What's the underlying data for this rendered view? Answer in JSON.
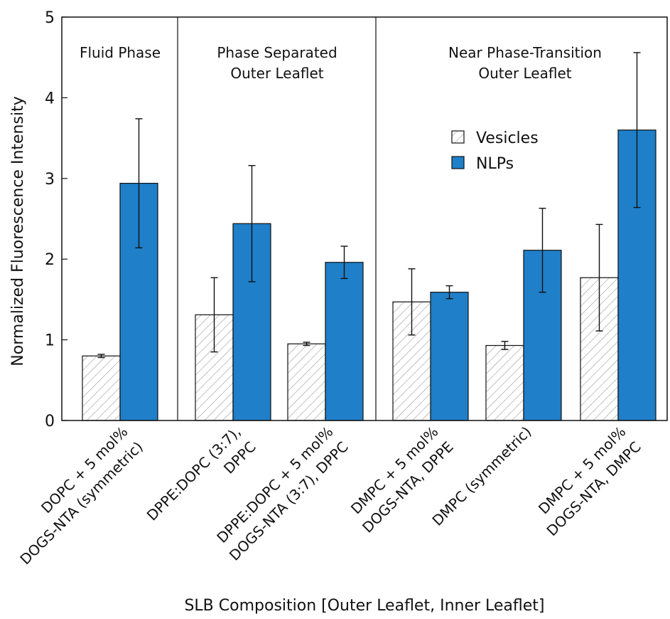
{
  "chart_data": {
    "type": "bar",
    "xlabel": "SLB Composition [Outer Leaflet, Inner Leaflet]",
    "ylabel": "Normalized Fluorescence Intensity",
    "ylim": [
      0,
      5
    ],
    "yticks": [
      "0",
      "1",
      "2",
      "3",
      "4",
      "5"
    ],
    "grid": false,
    "legend_position": "upper-right",
    "categories": [
      [
        "DOPC + 5 mol%",
        "DOGS-NTA (symmetric)"
      ],
      [
        "DPPE:DOPC (3:7),",
        "DPPC"
      ],
      [
        "DPPE:DOPC + 5 mol%",
        "DOGS-NTA (3:7), DPPC"
      ],
      [
        "DMPC + 5 mol%",
        "DOGS-NTA, DPPE"
      ],
      [
        "DMPC (symmetric)"
      ],
      [
        "DMPC + 5 mol%",
        "DOGS-NTA, DMPC"
      ]
    ],
    "series": [
      {
        "name": "Vesicles",
        "pattern": "hatched",
        "color": "#ffffff",
        "values": [
          0.8,
          1.31,
          0.95,
          1.47,
          0.93,
          1.77
        ],
        "error": [
          0.02,
          0.46,
          0.02,
          0.41,
          0.05,
          0.66
        ]
      },
      {
        "name": "NLPs",
        "pattern": "solid",
        "color": "#1f7fc8",
        "values": [
          2.94,
          2.44,
          1.96,
          1.59,
          2.11,
          3.6
        ],
        "error": [
          0.8,
          0.72,
          0.2,
          0.08,
          0.52,
          0.96
        ]
      }
    ],
    "groups": [
      {
        "label": [
          "Fluid Phase"
        ],
        "categories": [
          0
        ]
      },
      {
        "label": [
          "Phase Separated",
          "Outer Leaflet"
        ],
        "categories": [
          1,
          2
        ]
      },
      {
        "label": [
          "Near Phase-Transition",
          "Outer Leaflet"
        ],
        "categories": [
          3,
          4,
          5
        ]
      }
    ]
  }
}
